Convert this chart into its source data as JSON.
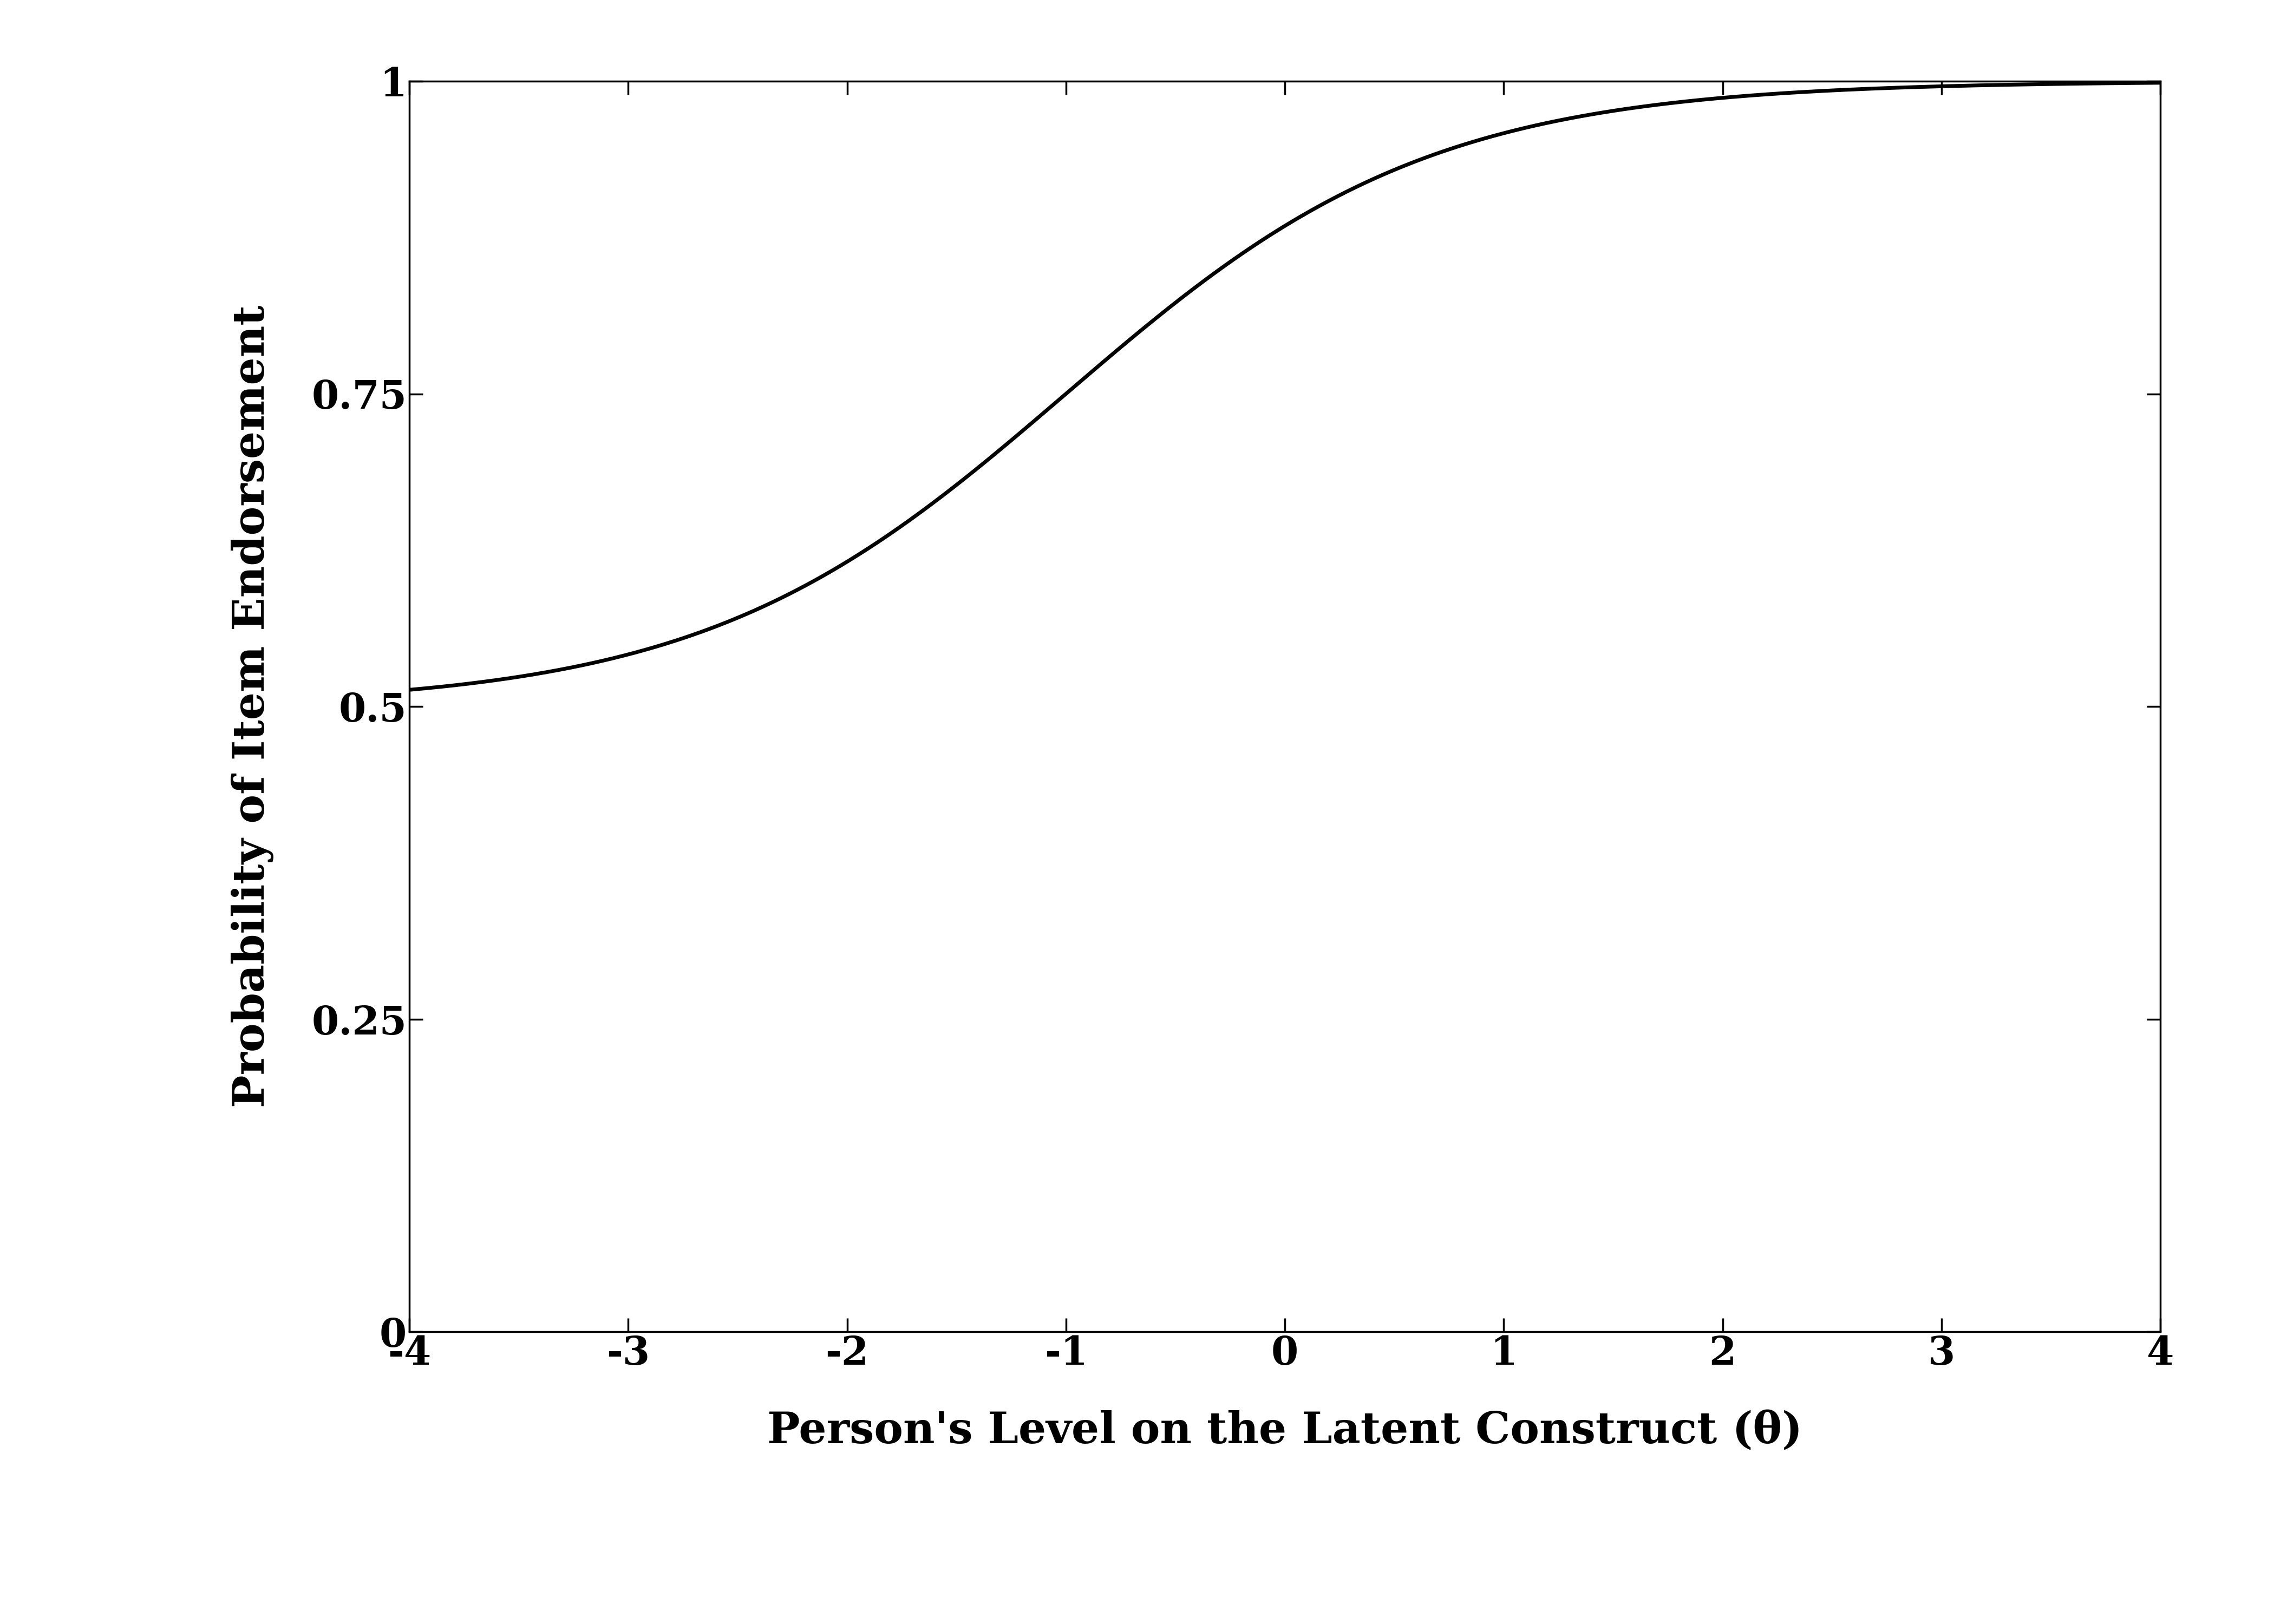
{
  "title": "",
  "xlabel": "Person's Level on the Latent Construct (θ)",
  "ylabel": "Probability of Item Endorsement",
  "xlim": [
    -4,
    4
  ],
  "ylim": [
    0,
    1
  ],
  "xticks": [
    -4,
    -3,
    -2,
    -1,
    0,
    1,
    2,
    3,
    4
  ],
  "yticks": [
    0,
    0.25,
    0.5,
    0.75,
    1.0
  ],
  "ytick_labels": [
    "0",
    "0.25",
    "0.5",
    "0.75",
    "1"
  ],
  "icc_a": 1.2,
  "icc_b": -1.0,
  "icc_c": 0.5,
  "line_color": "#000000",
  "line_width": 5.0,
  "background_color": "#ffffff",
  "xlabel_fontsize": 58,
  "ylabel_fontsize": 58,
  "tick_fontsize": 52,
  "label_fontweight": "bold"
}
